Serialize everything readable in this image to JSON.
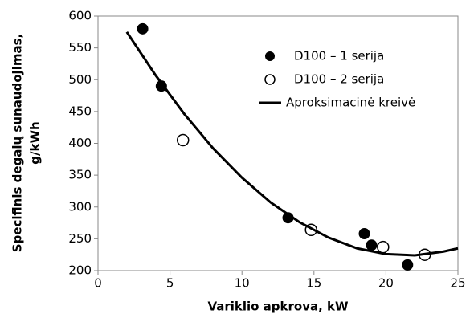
{
  "chart_data": {
    "type": "scatter",
    "xlabel": "Variklio apkrova, kW",
    "ylabel": [
      "Specifinis degalų sunaudojimas,",
      "g/kWh"
    ],
    "xlim": [
      0,
      25
    ],
    "xticks": [
      0,
      5,
      10,
      15,
      20,
      25
    ],
    "ylim": [
      200,
      600
    ],
    "yticks": [
      200,
      250,
      300,
      350,
      400,
      450,
      500,
      550,
      600
    ],
    "legend": "upper right",
    "series": [
      {
        "name": "D100 – 1 serija",
        "marker": "filled",
        "color": "#000000",
        "x": [
          3.1,
          4.4,
          13.2,
          18.5,
          19.0,
          21.5
        ],
        "values": [
          580,
          490,
          283,
          258,
          240,
          209
        ]
      },
      {
        "name": "D100 – 2 serija",
        "marker": "open",
        "color": "#000000",
        "x": [
          5.9,
          14.8,
          19.8,
          22.7
        ],
        "values": [
          405,
          264,
          237,
          225
        ]
      },
      {
        "name": "Aproksimacinė kreivė",
        "marker": "line",
        "color": "#000000",
        "x": [
          2,
          4,
          6,
          8,
          10,
          12,
          14,
          16,
          18,
          20,
          22,
          24,
          25
        ],
        "values": [
          575,
          507,
          446,
          392,
          346,
          307,
          276,
          252,
          235,
          226,
          224,
          230,
          235
        ]
      }
    ]
  }
}
